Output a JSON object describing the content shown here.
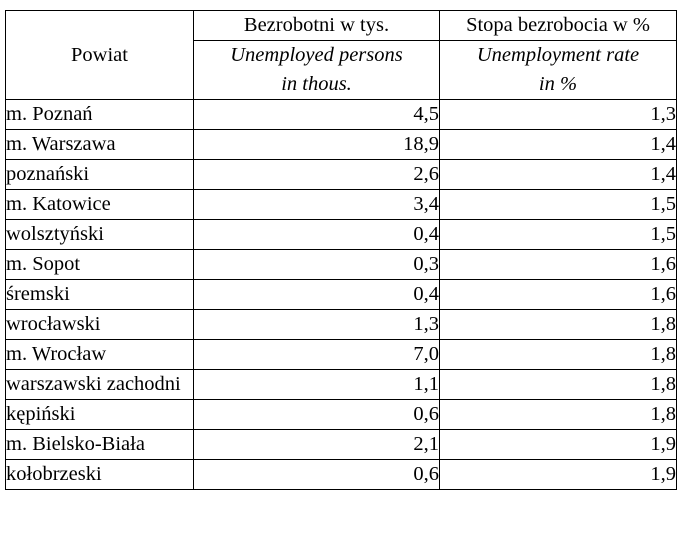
{
  "header": {
    "powiat": "Powiat",
    "col2_pl": "Bezrobotni w tys.",
    "col2_en_1": "Unemployed persons",
    "col2_en_2": "in thous.",
    "col3_pl": "Stopa bezrobocia w %",
    "col3_en_1": "Unemployment rate",
    "col3_en_2": "in %"
  },
  "rows": [
    {
      "powiat": "m. Poznań",
      "unemployed": "4,5",
      "rate": "1,3"
    },
    {
      "powiat": "m. Warszawa",
      "unemployed": "18,9",
      "rate": "1,4"
    },
    {
      "powiat": "poznański",
      "unemployed": "2,6",
      "rate": "1,4"
    },
    {
      "powiat": "m. Katowice",
      "unemployed": "3,4",
      "rate": "1,5"
    },
    {
      "powiat": "wolsztyński",
      "unemployed": "0,4",
      "rate": "1,5"
    },
    {
      "powiat": "m. Sopot",
      "unemployed": "0,3",
      "rate": "1,6"
    },
    {
      "powiat": "śremski",
      "unemployed": "0,4",
      "rate": "1,6"
    },
    {
      "powiat": "wrocławski",
      "unemployed": "1,3",
      "rate": "1,8"
    },
    {
      "powiat": "m. Wrocław",
      "unemployed": "7,0",
      "rate": "1,8"
    },
    {
      "powiat": "warszawski zachodni",
      "unemployed": "1,1",
      "rate": "1,8"
    },
    {
      "powiat": "kępiński",
      "unemployed": "0,6",
      "rate": "1,8"
    },
    {
      "powiat": "m. Bielsko-Biała",
      "unemployed": "2,1",
      "rate": "1,9"
    },
    {
      "powiat": "kołobrzeski",
      "unemployed": "0,6",
      "rate": "1,9"
    }
  ]
}
